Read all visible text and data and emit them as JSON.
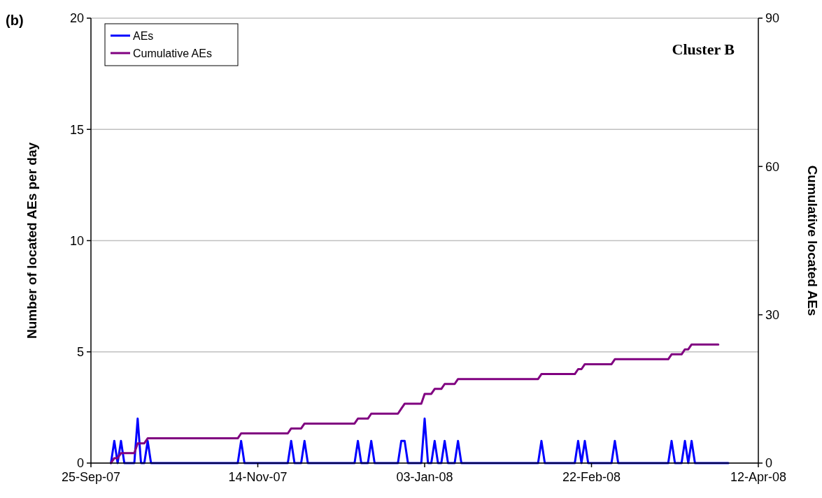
{
  "chart_data": {
    "type": "line",
    "ylabel": "Number of located AEs per day",
    "y2label": "Cumulative located AEs",
    "annotations": [
      "(b)",
      "Cluster B"
    ],
    "xlim": [
      "2007-09-25",
      "2008-04-12"
    ],
    "xticks": [
      {
        "value": "2007-09-25",
        "label": "25-Sep-07"
      },
      {
        "value": "2007-11-14",
        "label": "14-Nov-07"
      },
      {
        "value": "2008-01-03",
        "label": "03-Jan-08"
      },
      {
        "value": "2008-02-22",
        "label": "22-Feb-08"
      },
      {
        "value": "2008-04-12",
        "label": "12-Apr-08"
      }
    ],
    "ylim": [
      0,
      20
    ],
    "yticks": [
      0,
      5,
      10,
      15,
      20
    ],
    "y2lim": [
      0,
      90
    ],
    "y2ticks": [
      0,
      30,
      60,
      90
    ],
    "grid": "y",
    "legend": "top left",
    "marker": "none",
    "line_style": "solid",
    "series": [
      {
        "name": "AEs",
        "color": "#0000ff",
        "x": [
          "2007-10-01",
          "2007-10-02",
          "2007-10-03",
          "2007-10-04",
          "2007-10-05",
          "2007-10-08",
          "2007-10-09",
          "2007-10-10",
          "2007-10-11",
          "2007-10-12",
          "2007-10-13",
          "2007-11-08",
          "2007-11-09",
          "2007-11-10",
          "2007-11-23",
          "2007-11-24",
          "2007-11-25",
          "2007-11-27",
          "2007-11-28",
          "2007-11-29",
          "2007-12-13",
          "2007-12-14",
          "2007-12-15",
          "2007-12-17",
          "2007-12-18",
          "2007-12-19",
          "2007-12-26",
          "2007-12-27",
          "2007-12-28",
          "2007-12-29",
          "2008-01-02",
          "2008-01-03",
          "2008-01-04",
          "2008-01-05",
          "2008-01-06",
          "2008-01-07",
          "2008-01-08",
          "2008-01-09",
          "2008-01-10",
          "2008-01-12",
          "2008-01-13",
          "2008-01-14",
          "2008-02-06",
          "2008-02-07",
          "2008-02-08",
          "2008-02-17",
          "2008-02-18",
          "2008-02-19",
          "2008-02-20",
          "2008-02-21",
          "2008-02-28",
          "2008-02-29",
          "2008-03-01",
          "2008-03-16",
          "2008-03-17",
          "2008-03-18",
          "2008-03-20",
          "2008-03-21",
          "2008-03-22",
          "2008-03-23",
          "2008-03-24",
          "2008-04-03"
        ],
        "values": [
          0,
          1,
          0,
          1,
          0,
          0,
          2,
          0,
          0,
          1,
          0,
          0,
          1,
          0,
          0,
          1,
          0,
          0,
          1,
          0,
          0,
          1,
          0,
          0,
          1,
          0,
          0,
          1,
          1,
          0,
          0,
          2,
          0,
          0,
          1,
          0,
          0,
          1,
          0,
          0,
          1,
          0,
          0,
          1,
          0,
          0,
          1,
          0,
          1,
          0,
          0,
          1,
          0,
          0,
          1,
          0,
          0,
          1,
          0,
          1,
          0,
          0
        ]
      },
      {
        "name": "Cumulative AEs",
        "color": "#800080",
        "axis": "y2",
        "x": [
          "2007-10-01",
          "2007-10-02",
          "2007-10-03",
          "2007-10-04",
          "2007-10-08",
          "2007-10-09",
          "2007-10-11",
          "2007-10-12",
          "2007-11-08",
          "2007-11-09",
          "2007-11-23",
          "2007-11-24",
          "2007-11-27",
          "2007-11-28",
          "2007-12-13",
          "2007-12-14",
          "2007-12-17",
          "2007-12-18",
          "2007-12-26",
          "2007-12-27",
          "2007-12-28",
          "2008-01-02",
          "2008-01-03",
          "2008-01-05",
          "2008-01-06",
          "2008-01-08",
          "2008-01-09",
          "2008-01-12",
          "2008-01-13",
          "2008-02-06",
          "2008-02-07",
          "2008-02-17",
          "2008-02-18",
          "2008-02-19",
          "2008-02-20",
          "2008-02-28",
          "2008-02-29",
          "2008-03-16",
          "2008-03-17",
          "2008-03-20",
          "2008-03-21",
          "2008-03-22",
          "2008-03-23",
          "2008-03-31"
        ],
        "values": [
          0,
          1,
          1,
          2,
          2,
          4,
          4,
          5,
          5,
          6,
          6,
          7,
          7,
          8,
          8,
          9,
          9,
          10,
          10,
          11,
          12,
          12,
          14,
          14,
          15,
          15,
          16,
          16,
          17,
          17,
          18,
          18,
          19,
          19,
          20,
          20,
          21,
          21,
          22,
          22,
          23,
          23,
          24,
          24
        ]
      }
    ]
  }
}
